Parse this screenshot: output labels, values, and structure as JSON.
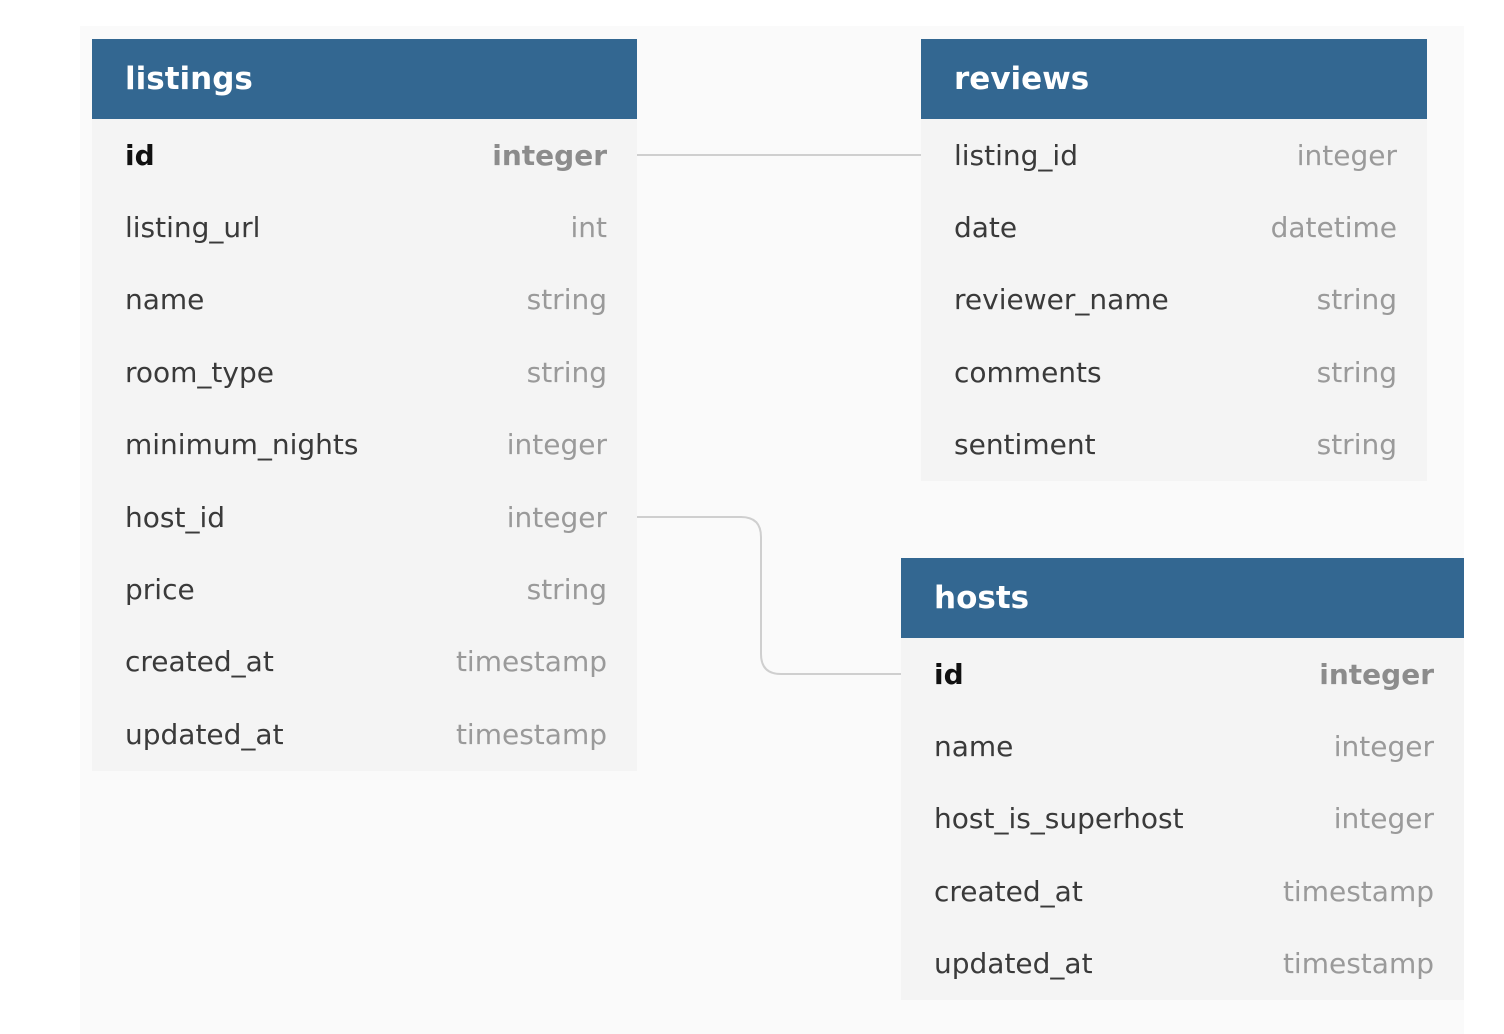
{
  "tables": [
    {
      "name": "listings",
      "columns": [
        {
          "name": "id",
          "type": "integer",
          "pk": true
        },
        {
          "name": "listing_url",
          "type": "int"
        },
        {
          "name": "name",
          "type": "string"
        },
        {
          "name": "room_type",
          "type": "string"
        },
        {
          "name": "minimum_nights",
          "type": "integer"
        },
        {
          "name": "host_id",
          "type": "integer"
        },
        {
          "name": "price",
          "type": "string"
        },
        {
          "name": "created_at",
          "type": "timestamp"
        },
        {
          "name": "updated_at",
          "type": "timestamp"
        }
      ]
    },
    {
      "name": "reviews",
      "columns": [
        {
          "name": "listing_id",
          "type": "integer"
        },
        {
          "name": "date",
          "type": "datetime"
        },
        {
          "name": "reviewer_name",
          "type": "string"
        },
        {
          "name": "comments",
          "type": "string"
        },
        {
          "name": "sentiment",
          "type": "string"
        }
      ]
    },
    {
      "name": "hosts",
      "columns": [
        {
          "name": "id",
          "type": "integer",
          "pk": true
        },
        {
          "name": "name",
          "type": "integer"
        },
        {
          "name": "host_is_superhost",
          "type": "integer"
        },
        {
          "name": "created_at",
          "type": "timestamp"
        },
        {
          "name": "updated_at",
          "type": "timestamp"
        }
      ]
    }
  ],
  "relations": [
    {
      "from": "listings.id",
      "to": "reviews.listing_id"
    },
    {
      "from": "listings.host_id",
      "to": "hosts.id"
    }
  ],
  "colors": {
    "header": "#336791",
    "row_bg": "#f4f4f4",
    "connector": "#cfcfcf"
  }
}
